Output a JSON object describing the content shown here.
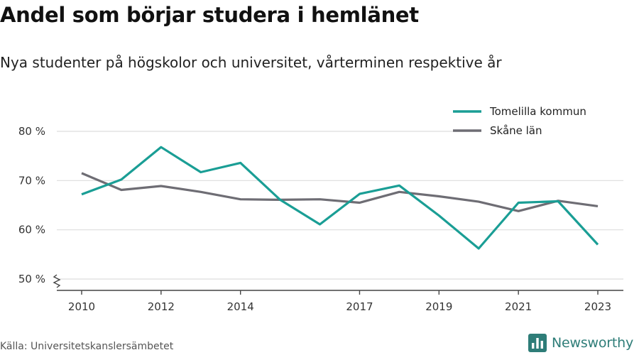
{
  "header": {
    "title": "Andel som börjar studera i hemlänet",
    "subtitle": "Nya studenter på högskolor och universitet, vårterminen respektive år"
  },
  "footer": {
    "source": "Källa: Universitetskanslersämbetet",
    "brand": "Newsworthy",
    "brand_icon": "bar-chart-logo-icon"
  },
  "colors": {
    "tomelilla": "#1a9e95",
    "skane": "#6e6d74",
    "grid": "#dddddd",
    "axis": "#444444",
    "brand": "#2e7d78"
  },
  "chart_data": {
    "type": "line",
    "title": "Andel som börjar studera i hemlänet",
    "subtitle": "Nya studenter på högskolor och universitet, vårterminen respektive år",
    "x": [
      2010,
      2011,
      2012,
      2013,
      2014,
      2015,
      2016,
      2017,
      2018,
      2019,
      2020,
      2021,
      2022,
      2023
    ],
    "x_ticks": [
      2010,
      2012,
      2014,
      2017,
      2019,
      2021,
      2023
    ],
    "y_ticks": [
      50,
      60,
      70,
      80
    ],
    "y_tick_labels": [
      "50 %",
      "60 %",
      "70 %",
      "80 %"
    ],
    "ylim": [
      50,
      80
    ],
    "y_axis_break": true,
    "grid": true,
    "legend_position": "top-right",
    "series": [
      {
        "name": "Tomelilla kommun",
        "color": "#1a9e95",
        "values": [
          67.2,
          70.2,
          76.8,
          71.7,
          73.6,
          66.1,
          61.1,
          67.3,
          69.0,
          62.9,
          56.2,
          65.5,
          65.8,
          57.0
        ]
      },
      {
        "name": "Skåne län",
        "color": "#6e6d74",
        "values": [
          71.5,
          68.1,
          68.9,
          67.7,
          66.2,
          66.1,
          66.2,
          65.5,
          67.7,
          66.8,
          65.7,
          63.8,
          65.9,
          64.8
        ]
      }
    ]
  }
}
